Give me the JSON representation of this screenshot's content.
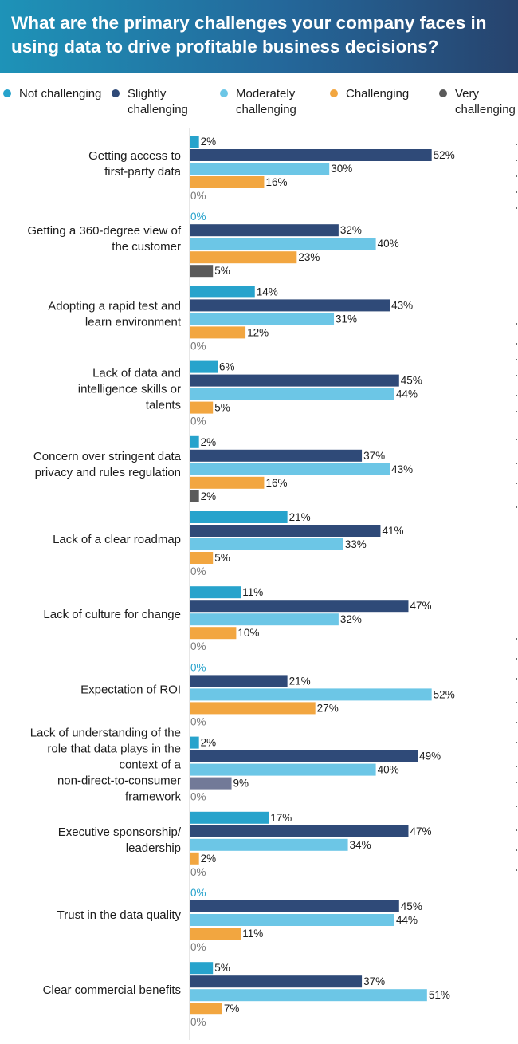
{
  "header": {
    "title": "What are the primary challenges your company faces in using data to drive profitable business decisions?"
  },
  "colors": {
    "header_start": "#1e93b8",
    "header_end": "#27436d",
    "axis": "#cfcfcf",
    "label_text": "#1c1c1c",
    "zero_label_default": "#7a7a7a",
    "zero_label_not_challenging": "#27a3cc"
  },
  "legend": [
    {
      "label": "Not challenging",
      "color": "#27a3cc"
    },
    {
      "label": "Slightly challenging",
      "color": "#2f4a78"
    },
    {
      "label": "Moderately challenging",
      "color": "#6cc6e6"
    },
    {
      "label": "Challenging",
      "color": "#f2a640"
    },
    {
      "label": "Very challenging",
      "color": "#5a5a5a"
    }
  ],
  "chart_data": {
    "type": "bar",
    "orientation": "horizontal",
    "value_suffix": "%",
    "xlim": [
      0,
      60
    ],
    "series_names": [
      "Not challenging",
      "Slightly challenging",
      "Moderately challenging",
      "Challenging",
      "Very challenging"
    ],
    "categories": [
      {
        "label": "Getting access to first-party data",
        "values": [
          2,
          52,
          30,
          16,
          0
        ]
      },
      {
        "label": "Getting a 360-degree view of the customer",
        "values": [
          0,
          32,
          40,
          23,
          5
        ]
      },
      {
        "label": "Adopting a rapid test and learn environment",
        "values": [
          14,
          43,
          31,
          12,
          0
        ]
      },
      {
        "label": "Lack of data and intelligence skills or talents",
        "values": [
          6,
          45,
          44,
          5,
          0
        ]
      },
      {
        "label": "Concern over stringent data privacy and rules regulation",
        "values": [
          2,
          37,
          43,
          16,
          2
        ]
      },
      {
        "label": "Lack of a clear roadmap",
        "values": [
          21,
          41,
          33,
          5,
          0
        ]
      },
      {
        "label": "Lack of culture for change",
        "values": [
          11,
          47,
          32,
          10,
          0
        ]
      },
      {
        "label": "Expectation of ROI",
        "values": [
          0,
          21,
          52,
          27,
          0
        ]
      },
      {
        "label": "Lack of understanding of the role that data plays in the context of a non-direct-to-consumer framework",
        "values": [
          2,
          49,
          40,
          9,
          0
        ]
      },
      {
        "label": "Executive sponsorship/ leadership",
        "values": [
          17,
          47,
          34,
          2,
          0
        ]
      },
      {
        "label": "Trust in the data quality",
        "values": [
          0,
          45,
          44,
          11,
          0
        ]
      },
      {
        "label": "Clear commercial benefits",
        "values": [
          5,
          37,
          51,
          7,
          0
        ]
      }
    ]
  }
}
